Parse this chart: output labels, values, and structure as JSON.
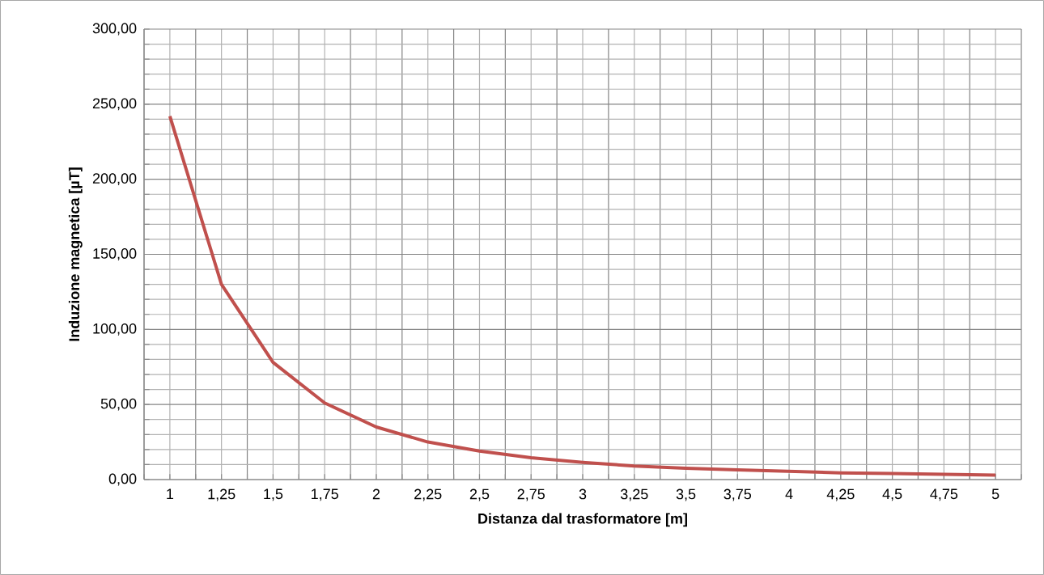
{
  "chart_data": {
    "type": "line",
    "xlabel": "Distanza dal trasformatore [m]",
    "ylabel": "Induzione magnetica [µT]",
    "categories": [
      "1",
      "1,25",
      "1,5",
      "1,75",
      "2",
      "2,25",
      "2,5",
      "2,75",
      "3",
      "3,25",
      "3,5",
      "3,75",
      "4",
      "4,25",
      "4,5",
      "4,75",
      "5"
    ],
    "series": [
      {
        "color": "#c0504d",
        "values": [
          242,
          130,
          78,
          51,
          35,
          25,
          19,
          14.5,
          11.5,
          9,
          7.5,
          6.5,
          5.5,
          4.5,
          4,
          3.5,
          3
        ]
      }
    ],
    "ylim": [
      0,
      300
    ],
    "yticks": [
      {
        "value": 0,
        "label": "0,00"
      },
      {
        "value": 50,
        "label": "50,00"
      },
      {
        "value": 100,
        "label": "100,00"
      },
      {
        "value": 150,
        "label": "150,00"
      },
      {
        "value": 200,
        "label": "200,00"
      },
      {
        "value": 250,
        "label": "250,00"
      },
      {
        "value": 300,
        "label": "300,00"
      }
    ],
    "grid": true,
    "marker": "none",
    "line_style": "solid"
  }
}
